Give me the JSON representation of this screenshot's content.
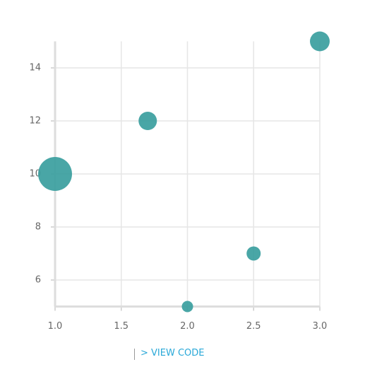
{
  "chart_data": {
    "type": "scatter",
    "x": [
      1.0,
      1.7,
      2.0,
      2.5,
      3.0
    ],
    "series": [
      {
        "color": "#3a9e9e",
        "values": [
          10,
          12,
          5,
          7,
          15
        ],
        "sizes": [
          24,
          13,
          8,
          10,
          14
        ]
      }
    ],
    "xlim": [
      1,
      3
    ],
    "ylim": [
      5,
      15
    ],
    "xticks": [
      {
        "value": 1,
        "label": "1.0"
      },
      {
        "value": 1.5,
        "label": "1.5"
      },
      {
        "value": 2,
        "label": "2.0"
      },
      {
        "value": 2.5,
        "label": "2.5"
      },
      {
        "value": 3,
        "label": "3.0"
      }
    ],
    "yticks": [
      6,
      8,
      10,
      12,
      14
    ],
    "grid": true
  },
  "link": "> VIEW CODE"
}
